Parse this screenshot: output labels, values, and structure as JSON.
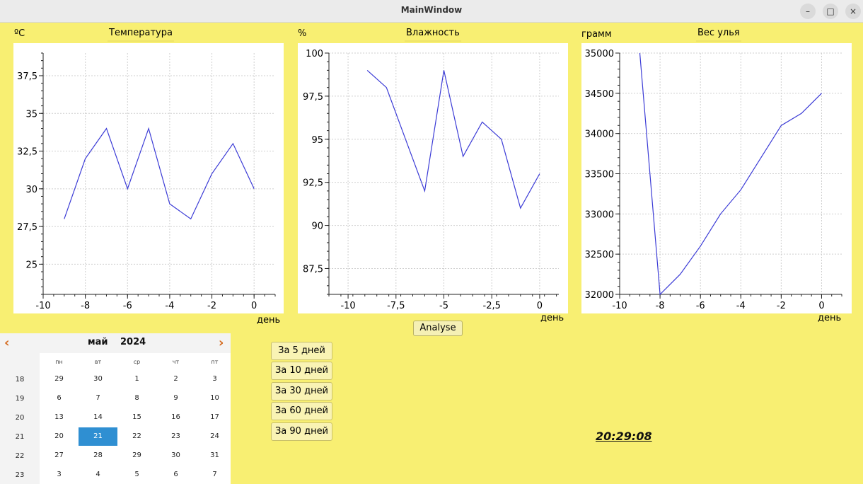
{
  "window": {
    "title": "MainWindow",
    "minimize_glyph": "–",
    "maximize_glyph": "□",
    "close_glyph": "×"
  },
  "charts": [
    {
      "unit_label": "ºC",
      "title": "Температура",
      "x_label": "день",
      "chart_data": {
        "type": "line",
        "title": "Температура",
        "xlabel": "день",
        "ylabel": "ºC",
        "xlim": [
          -10,
          1
        ],
        "ylim": [
          23,
          39
        ],
        "x_ticks": [
          -10,
          -8,
          -6,
          -4,
          -2,
          0
        ],
        "x_tick_labels": [
          "-10",
          "-8",
          "-6",
          "-4",
          "-2",
          "0"
        ],
        "y_ticks": [
          25,
          27.5,
          30,
          32.5,
          35,
          37.5
        ],
        "y_tick_labels": [
          "25",
          "27,5",
          "30",
          "32,5",
          "35",
          "37,5"
        ],
        "grid": true,
        "series": [
          {
            "x": [
              -9,
              -8,
              -7,
              -6,
              -5,
              -4,
              -3,
              -2,
              -1,
              0
            ],
            "y": [
              28,
              32,
              34,
              30,
              34,
              29,
              28,
              31,
              33,
              30
            ]
          }
        ]
      }
    },
    {
      "unit_label": "%",
      "title": "Влажность",
      "x_label": "день",
      "chart_data": {
        "type": "line",
        "title": "Влажность",
        "xlabel": "день",
        "ylabel": "%",
        "xlim": [
          -11,
          1
        ],
        "ylim": [
          86,
          100
        ],
        "x_ticks": [
          -10,
          -7.5,
          -5,
          -2.5,
          0
        ],
        "x_tick_labels": [
          "-10",
          "-7,5",
          "-5",
          "-2,5",
          "0"
        ],
        "y_ticks": [
          87.5,
          90,
          92.5,
          95,
          97.5,
          100
        ],
        "y_tick_labels": [
          "87,5",
          "90",
          "92,5",
          "95",
          "97,5",
          "100"
        ],
        "grid": true,
        "series": [
          {
            "x": [
              -9,
              -8,
              -7,
              -6,
              -5,
              -4,
              -3,
              -2,
              -1,
              0
            ],
            "y": [
              99,
              98,
              95,
              92,
              99,
              94,
              96,
              95,
              91,
              93
            ]
          }
        ]
      }
    },
    {
      "unit_label": "грамм",
      "title": "Вес улья",
      "x_label": "день",
      "chart_data": {
        "type": "line",
        "title": "Вес улья",
        "xlabel": "день",
        "ylabel": "грамм",
        "xlim": [
          -10,
          1
        ],
        "ylim": [
          32000,
          35000
        ],
        "x_ticks": [
          -10,
          -8,
          -6,
          -4,
          -2,
          0
        ],
        "x_tick_labels": [
          "-10",
          "-8",
          "-6",
          "-4",
          "-2",
          "0"
        ],
        "y_ticks": [
          32000,
          32500,
          33000,
          33500,
          34000,
          34500,
          35000
        ],
        "y_tick_labels": [
          "32000",
          "32500",
          "33000",
          "33500",
          "34000",
          "34500",
          "35000"
        ],
        "grid": true,
        "series": [
          {
            "x": [
              -9,
              -8,
              -7,
              -6,
              -5,
              -4,
              -3,
              -2,
              -1,
              0
            ],
            "y": [
              35000,
              32000,
              32250,
              32600,
              33000,
              33300,
              33700,
              34100,
              34250,
              34500
            ]
          }
        ]
      }
    }
  ],
  "analyse_label": "Analyse",
  "period_buttons": [
    "За 5 дней",
    "За 10 дней",
    "За 30 дней",
    "За 60 дней",
    "За 90 дней"
  ],
  "clock": "20:29:08",
  "calendar": {
    "month": "май",
    "year": "2024",
    "prev_glyph": "‹",
    "next_glyph": "›",
    "weekdays": [
      "пн",
      "вт",
      "ср",
      "чт",
      "пт"
    ],
    "weeks": [
      {
        "week": "18",
        "days": [
          "29",
          "30",
          "1",
          "2",
          "3"
        ]
      },
      {
        "week": "19",
        "days": [
          "6",
          "7",
          "8",
          "9",
          "10"
        ]
      },
      {
        "week": "20",
        "days": [
          "13",
          "14",
          "15",
          "16",
          "17"
        ]
      },
      {
        "week": "21",
        "days": [
          "20",
          "21",
          "22",
          "23",
          "24"
        ]
      },
      {
        "week": "22",
        "days": [
          "27",
          "28",
          "29",
          "30",
          "31"
        ]
      },
      {
        "week": "23",
        "days": [
          "3",
          "4",
          "5",
          "6",
          "7"
        ]
      }
    ],
    "selected": {
      "week_index": 3,
      "day_index": 1
    },
    "selected_color": "#2f8fd2",
    "arrow_color": "#d4691c"
  },
  "colors": {
    "background": "#f8ef72",
    "line": "#3b3bd6"
  }
}
